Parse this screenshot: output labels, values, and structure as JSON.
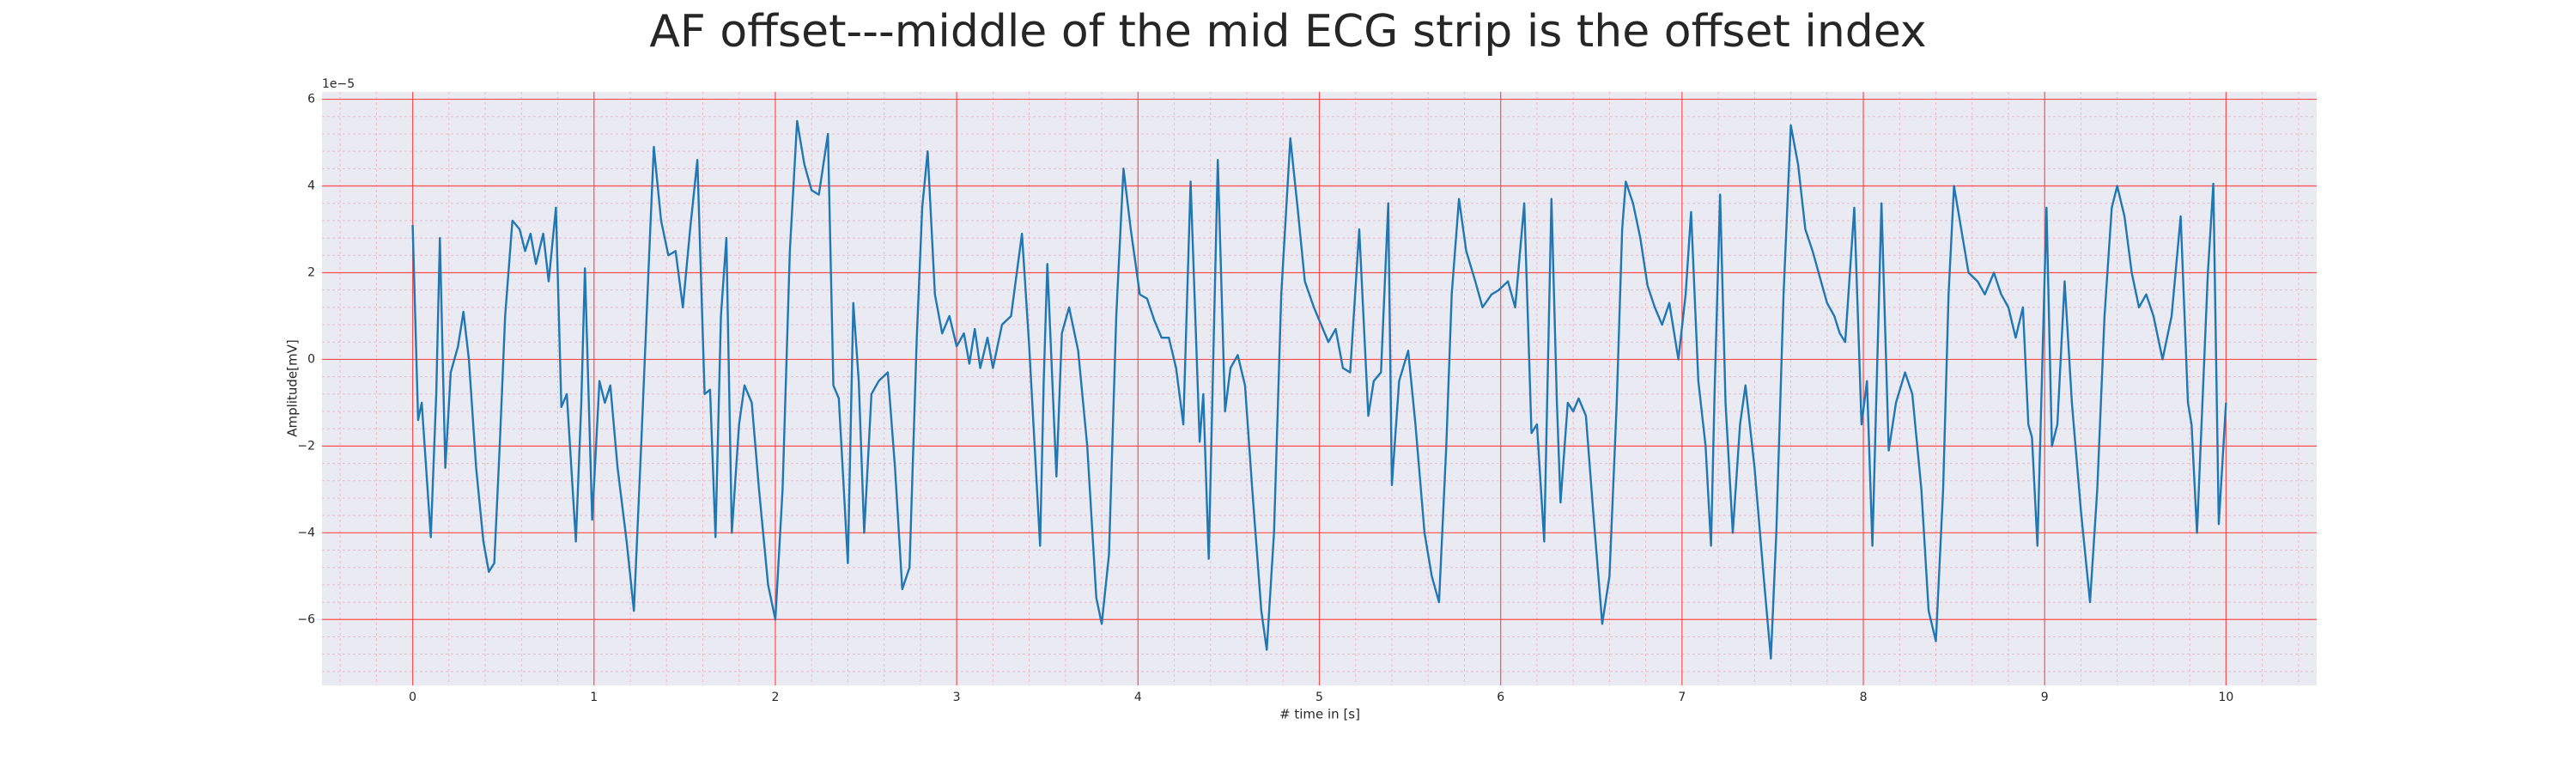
{
  "chart_data": {
    "type": "line",
    "title": "AF offset---middle of the mid ECG strip is the offset index",
    "x_label": "# time in [s]",
    "y_label": "Amplitude[mV]",
    "y_offset_label": "1e−5",
    "color": "#1f77b4",
    "background": "#eaeaf2",
    "grid": true,
    "grid_color": "#ff4d4d",
    "minor_grid": true,
    "minor_grid_color": "#f2b8c6",
    "xlim": [
      -0.5,
      10.5
    ],
    "xticks": [
      0,
      1,
      2,
      3,
      4,
      5,
      6,
      7,
      8,
      9,
      10
    ],
    "ylim": [
      -7.52,
      6.17
    ],
    "yticks": [
      {
        "value": -6,
        "label": "−6"
      },
      {
        "value": -4,
        "label": "−4"
      },
      {
        "value": -2,
        "label": "−2"
      },
      0,
      2,
      4,
      6
    ],
    "x": [
      0.0,
      0.03,
      0.05,
      0.1,
      0.13,
      0.15,
      0.18,
      0.21,
      0.25,
      0.28,
      0.31,
      0.35,
      0.39,
      0.42,
      0.45,
      0.48,
      0.51,
      0.55,
      0.59,
      0.62,
      0.65,
      0.68,
      0.72,
      0.75,
      0.79,
      0.82,
      0.85,
      0.9,
      0.93,
      0.95,
      0.99,
      1.03,
      1.06,
      1.09,
      1.13,
      1.18,
      1.22,
      1.26,
      1.3,
      1.33,
      1.37,
      1.41,
      1.45,
      1.49,
      1.53,
      1.57,
      1.61,
      1.64,
      1.67,
      1.7,
      1.73,
      1.76,
      1.8,
      1.83,
      1.87,
      1.91,
      1.96,
      2.0,
      2.04,
      2.08,
      2.12,
      2.16,
      2.2,
      2.24,
      2.29,
      2.32,
      2.35,
      2.4,
      2.43,
      2.46,
      2.49,
      2.53,
      2.57,
      2.62,
      2.66,
      2.7,
      2.74,
      2.78,
      2.81,
      2.84,
      2.88,
      2.92,
      2.96,
      3.0,
      3.04,
      3.07,
      3.1,
      3.13,
      3.17,
      3.2,
      3.25,
      3.3,
      3.36,
      3.4,
      3.46,
      3.48,
      3.5,
      3.55,
      3.58,
      3.62,
      3.67,
      3.72,
      3.77,
      3.8,
      3.84,
      3.88,
      3.92,
      3.96,
      4.01,
      4.05,
      4.09,
      4.13,
      4.17,
      4.21,
      4.25,
      4.29,
      4.34,
      4.36,
      4.39,
      4.44,
      4.48,
      4.51,
      4.55,
      4.59,
      4.63,
      4.68,
      4.71,
      4.75,
      4.79,
      4.84,
      4.88,
      4.92,
      4.97,
      5.01,
      5.05,
      5.09,
      5.13,
      5.17,
      5.22,
      5.27,
      5.3,
      5.34,
      5.38,
      5.4,
      5.44,
      5.49,
      5.53,
      5.58,
      5.62,
      5.66,
      5.7,
      5.73,
      5.77,
      5.81,
      5.86,
      5.9,
      5.95,
      5.99,
      6.04,
      6.08,
      6.13,
      6.17,
      6.2,
      6.24,
      6.28,
      6.31,
      6.33,
      6.37,
      6.4,
      6.43,
      6.47,
      6.51,
      6.56,
      6.6,
      6.64,
      6.67,
      6.69,
      6.73,
      6.77,
      6.81,
      6.85,
      6.89,
      6.93,
      6.98,
      7.02,
      7.05,
      7.09,
      7.13,
      7.16,
      7.18,
      7.21,
      7.24,
      7.28,
      7.32,
      7.35,
      7.4,
      7.45,
      7.49,
      7.52,
      7.56,
      7.6,
      7.64,
      7.68,
      7.72,
      7.76,
      7.8,
      7.84,
      7.87,
      7.9,
      7.95,
      7.99,
      8.02,
      8.05,
      8.1,
      8.14,
      8.18,
      8.23,
      8.27,
      8.32,
      8.36,
      8.4,
      8.44,
      8.47,
      8.5,
      8.54,
      8.58,
      8.63,
      8.67,
      8.72,
      8.76,
      8.8,
      8.84,
      8.88,
      8.91,
      8.93,
      8.96,
      9.01,
      9.04,
      9.07,
      9.11,
      9.15,
      9.2,
      9.25,
      9.29,
      9.33,
      9.37,
      9.4,
      9.44,
      9.48,
      9.52,
      9.56,
      9.6,
      9.65,
      9.7,
      9.75,
      9.79,
      9.81,
      9.84,
      9.9,
      9.93,
      9.96,
      10.0
    ],
    "values": [
      3.1,
      -1.4,
      -1.0,
      -4.1,
      -0.8,
      2.8,
      -2.5,
      -0.3,
      0.3,
      1.1,
      0.0,
      -2.5,
      -4.2,
      -4.9,
      -4.7,
      -2.0,
      1.0,
      3.2,
      3.0,
      2.5,
      2.9,
      2.2,
      2.9,
      1.8,
      3.5,
      -1.1,
      -0.8,
      -4.2,
      -1.0,
      2.1,
      -3.7,
      -0.5,
      -1.0,
      -0.6,
      -2.5,
      -4.2,
      -5.8,
      -2.0,
      2.0,
      4.9,
      3.2,
      2.4,
      2.5,
      1.2,
      3.0,
      4.6,
      -0.8,
      -0.7,
      -4.1,
      1.0,
      2.8,
      -4.0,
      -1.5,
      -0.6,
      -1.0,
      -3.0,
      -5.2,
      -6.0,
      -3.0,
      2.5,
      5.5,
      4.5,
      3.9,
      3.8,
      5.2,
      -0.6,
      -0.9,
      -4.7,
      1.3,
      -0.5,
      -4.0,
      -0.8,
      -0.5,
      -0.3,
      -2.5,
      -5.3,
      -4.8,
      0.5,
      3.5,
      4.8,
      1.5,
      0.6,
      1.0,
      0.3,
      0.6,
      -0.1,
      0.7,
      -0.2,
      0.5,
      -0.2,
      0.8,
      1.0,
      2.9,
      0.3,
      -4.3,
      -0.5,
      2.2,
      -2.7,
      0.6,
      1.2,
      0.2,
      -2.0,
      -5.5,
      -6.1,
      -4.5,
      1.0,
      4.4,
      3.0,
      1.5,
      1.4,
      0.9,
      0.5,
      0.5,
      -0.2,
      -1.5,
      4.1,
      -1.9,
      -0.8,
      -4.6,
      4.6,
      -1.2,
      -0.2,
      0.1,
      -0.6,
      -3.0,
      -5.8,
      -6.7,
      -4.0,
      1.5,
      5.1,
      3.5,
      1.8,
      1.2,
      0.8,
      0.4,
      0.7,
      -0.2,
      -0.3,
      3.0,
      -1.3,
      -0.5,
      -0.3,
      3.6,
      -2.9,
      -0.5,
      0.2,
      -1.5,
      -4.0,
      -5.0,
      -5.6,
      -2.0,
      1.5,
      3.7,
      2.5,
      1.8,
      1.2,
      1.5,
      1.6,
      1.8,
      1.2,
      3.6,
      -1.7,
      -1.5,
      -4.2,
      3.7,
      -1.0,
      -3.3,
      -1.0,
      -1.2,
      -0.9,
      -1.3,
      -3.5,
      -6.1,
      -5.0,
      -1.0,
      3.0,
      4.1,
      3.6,
      2.8,
      1.7,
      1.2,
      0.8,
      1.3,
      0.0,
      1.5,
      3.4,
      -0.5,
      -2.0,
      -4.3,
      -0.7,
      3.8,
      -1.0,
      -4.0,
      -1.5,
      -0.6,
      -2.5,
      -5.0,
      -6.9,
      -4.0,
      1.5,
      5.4,
      4.5,
      3.0,
      2.5,
      1.9,
      1.3,
      1.0,
      0.6,
      0.4,
      3.5,
      -1.5,
      -0.5,
      -4.3,
      3.6,
      -2.1,
      -1.0,
      -0.3,
      -0.8,
      -3.0,
      -5.8,
      -6.5,
      -3.0,
      1.5,
      4.0,
      3.0,
      2.0,
      1.8,
      1.5,
      2.0,
      1.5,
      1.2,
      0.5,
      1.2,
      -1.5,
      -1.8,
      -4.3,
      3.5,
      -2.0,
      -1.5,
      1.8,
      -1.0,
      -3.5,
      -5.6,
      -3.0,
      1.0,
      3.5,
      4.0,
      3.3,
      2.0,
      1.2,
      1.5,
      1.0,
      0.0,
      1.0,
      3.3,
      -1.0,
      -1.5,
      -4.0,
      2.0,
      4.05,
      -3.8,
      -1.0
    ]
  }
}
